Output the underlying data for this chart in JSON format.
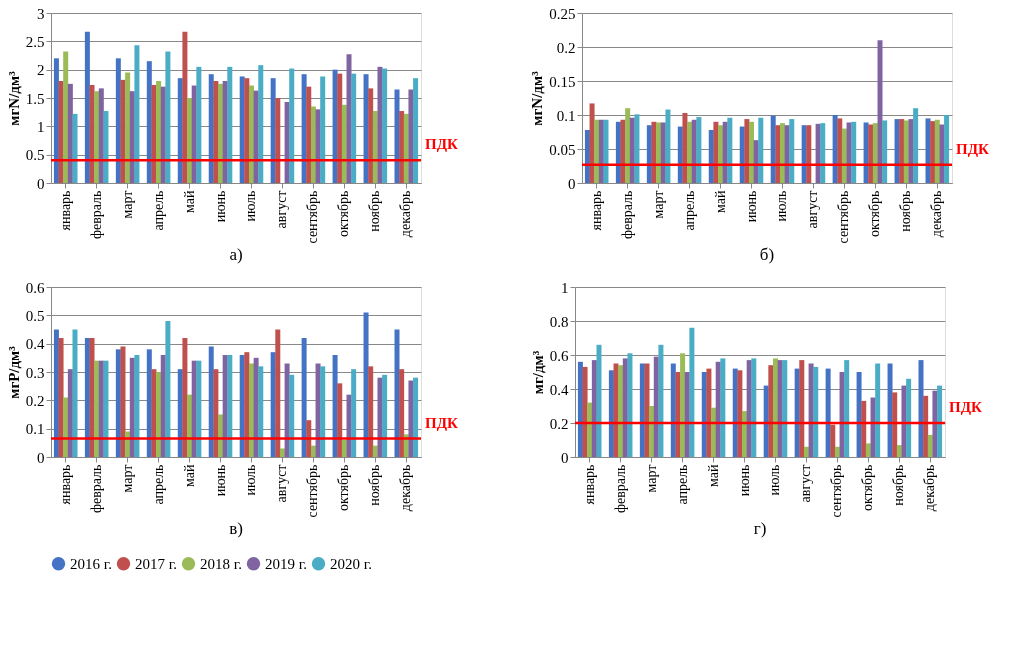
{
  "chart_data": [
    {
      "type": "bar",
      "title": "а)",
      "ylabel": "мгN/дм³",
      "categories": [
        "январь",
        "февраль",
        "март",
        "апрель",
        "май",
        "июнь",
        "июль",
        "август",
        "сентябрь",
        "октябрь",
        "ноябрь",
        "декабрь"
      ],
      "ylim": [
        0,
        3
      ],
      "yticks": [
        0,
        0.5,
        1,
        1.5,
        2,
        2.5,
        3
      ],
      "grid": "y",
      "legend": "bottom",
      "series": [
        {
          "name": "2016 г.",
          "color": "#4472c4",
          "values": [
            2.2,
            2.67,
            2.2,
            2.15,
            1.85,
            1.92,
            1.88,
            1.85,
            1.92,
            2.0,
            1.92,
            1.65
          ]
        },
        {
          "name": "2017 г.",
          "color": "#c0504d",
          "values": [
            1.8,
            1.73,
            1.82,
            1.73,
            2.67,
            1.8,
            1.85,
            1.5,
            1.7,
            1.93,
            1.67,
            1.27
          ]
        },
        {
          "name": "2018 г.",
          "color": "#9bbb59",
          "values": [
            2.32,
            1.62,
            1.95,
            1.8,
            1.5,
            1.75,
            1.72,
            null,
            1.35,
            1.38,
            1.27,
            1.22
          ]
        },
        {
          "name": "2019 г.",
          "color": "#8064a2",
          "values": [
            1.75,
            1.67,
            1.62,
            1.7,
            1.72,
            1.8,
            1.63,
            1.43,
            1.3,
            2.27,
            2.05,
            1.65
          ]
        },
        {
          "name": "2020 г.",
          "color": "#4bacc6",
          "values": [
            1.22,
            1.27,
            2.43,
            2.32,
            2.05,
            2.05,
            2.08,
            2.02,
            1.88,
            1.93,
            2.02,
            1.85
          ]
        }
      ],
      "ref_lines": [
        {
          "axis": "y",
          "value": 0.4,
          "label": "ПДК",
          "color": "#ff0000"
        }
      ]
    },
    {
      "type": "bar",
      "title": "б)",
      "ylabel": "мгN/дм³",
      "categories": [
        "январь",
        "февраль",
        "март",
        "апрель",
        "май",
        "июнь",
        "июль",
        "август",
        "сентябрь",
        "октябрь",
        "ноябрь",
        "декабрь"
      ],
      "ylim": [
        0,
        0.25
      ],
      "yticks": [
        0,
        0.05,
        0.1,
        0.15,
        0.2,
        0.25
      ],
      "grid": "y",
      "legend": "bottom",
      "series": [
        {
          "name": "2016 г.",
          "color": "#4472c4",
          "values": [
            0.078,
            0.09,
            0.085,
            0.083,
            0.078,
            0.083,
            0.099,
            0.085,
            0.1,
            0.089,
            0.094,
            0.095
          ]
        },
        {
          "name": "2017 г.",
          "color": "#c0504d",
          "values": [
            0.117,
            0.093,
            0.09,
            0.103,
            0.09,
            0.094,
            0.085,
            0.085,
            0.095,
            0.086,
            0.094,
            0.091
          ]
        },
        {
          "name": "2018 г.",
          "color": "#9bbb59",
          "values": [
            0.093,
            0.11,
            0.089,
            0.09,
            0.085,
            0.09,
            0.088,
            null,
            0.08,
            0.088,
            0.092,
            0.093
          ]
        },
        {
          "name": "2019 г.",
          "color": "#8064a2",
          "values": [
            0.093,
            0.096,
            0.089,
            0.093,
            0.09,
            0.063,
            0.085,
            0.087,
            0.089,
            0.21,
            0.094,
            0.086
          ]
        },
        {
          "name": "2020 г.",
          "color": "#4bacc6",
          "values": [
            0.093,
            0.101,
            0.108,
            0.097,
            0.096,
            0.096,
            0.094,
            0.088,
            0.09,
            0.092,
            0.11,
            0.1
          ]
        }
      ],
      "ref_lines": [
        {
          "axis": "y",
          "value": 0.027,
          "label": "ПДК",
          "color": "#ff0000"
        }
      ]
    },
    {
      "type": "bar",
      "title": "в)",
      "ylabel": "мгP/дм³",
      "categories": [
        "январь",
        "февраль",
        "март",
        "апрель",
        "май",
        "июнь",
        "июль",
        "август",
        "сентябрь",
        "октябрь",
        "ноябрь",
        "декабрь"
      ],
      "ylim": [
        0,
        0.6
      ],
      "yticks": [
        0,
        0.1,
        0.2,
        0.3,
        0.4,
        0.5,
        0.6
      ],
      "grid": "y",
      "legend": "bottom",
      "series": [
        {
          "name": "2016 г.",
          "color": "#4472c4",
          "values": [
            0.45,
            0.42,
            0.38,
            0.38,
            0.31,
            0.39,
            0.36,
            0.37,
            0.42,
            0.36,
            0.51,
            0.45
          ]
        },
        {
          "name": "2017 г.",
          "color": "#c0504d",
          "values": [
            0.42,
            0.42,
            0.39,
            0.31,
            0.42,
            0.31,
            0.37,
            0.45,
            0.13,
            0.26,
            0.32,
            0.31
          ]
        },
        {
          "name": "2018 г.",
          "color": "#9bbb59",
          "values": [
            0.21,
            0.34,
            0.09,
            0.3,
            0.22,
            0.15,
            0.33,
            0.03,
            0.04,
            0.06,
            0.04,
            0.08
          ]
        },
        {
          "name": "2019 г.",
          "color": "#8064a2",
          "values": [
            0.31,
            0.34,
            0.35,
            0.36,
            0.34,
            0.36,
            0.35,
            0.33,
            0.33,
            0.22,
            0.28,
            0.27
          ]
        },
        {
          "name": "2020 г.",
          "color": "#4bacc6",
          "values": [
            0.45,
            0.34,
            0.36,
            0.48,
            0.34,
            0.36,
            0.32,
            0.29,
            0.32,
            0.31,
            0.29,
            0.28
          ]
        }
      ],
      "ref_lines": [
        {
          "axis": "y",
          "value": 0.065,
          "label": "ПДК",
          "color": "#ff0000"
        }
      ]
    },
    {
      "type": "bar",
      "title": "г)",
      "ylabel": "мг/дм³",
      "categories": [
        "январь",
        "февраль",
        "март",
        "апрель",
        "май",
        "июнь",
        "июль",
        "август",
        "сентябрь",
        "октябрь",
        "ноябрь",
        "декабрь"
      ],
      "ylim": [
        0,
        1
      ],
      "yticks": [
        0,
        0.2,
        0.4,
        0.6,
        0.8,
        1
      ],
      "grid": "y",
      "legend": "bottom",
      "series": [
        {
          "name": "2016 г.",
          "color": "#4472c4",
          "values": [
            0.56,
            0.51,
            0.55,
            0.55,
            0.5,
            0.52,
            0.42,
            0.52,
            0.52,
            0.5,
            0.55,
            0.57
          ]
        },
        {
          "name": "2017 г.",
          "color": "#c0504d",
          "values": [
            0.53,
            0.55,
            0.55,
            0.5,
            0.52,
            0.51,
            0.54,
            0.57,
            0.19,
            0.33,
            0.38,
            0.36
          ]
        },
        {
          "name": "2018 г.",
          "color": "#9bbb59",
          "values": [
            0.32,
            0.54,
            0.3,
            0.61,
            0.29,
            0.27,
            0.58,
            0.06,
            0.06,
            0.08,
            0.07,
            0.13
          ]
        },
        {
          "name": "2019 г.",
          "color": "#8064a2",
          "values": [
            0.57,
            0.58,
            0.59,
            0.5,
            0.56,
            0.57,
            0.57,
            0.55,
            0.5,
            0.35,
            0.42,
            0.39
          ]
        },
        {
          "name": "2020 г.",
          "color": "#4bacc6",
          "values": [
            0.66,
            0.61,
            0.66,
            0.76,
            0.58,
            0.58,
            0.57,
            0.53,
            0.57,
            0.55,
            0.46,
            0.42
          ]
        }
      ],
      "ref_lines": [
        {
          "axis": "y",
          "value": 0.2,
          "label": "ПДК",
          "color": "#ff0000"
        }
      ]
    }
  ]
}
